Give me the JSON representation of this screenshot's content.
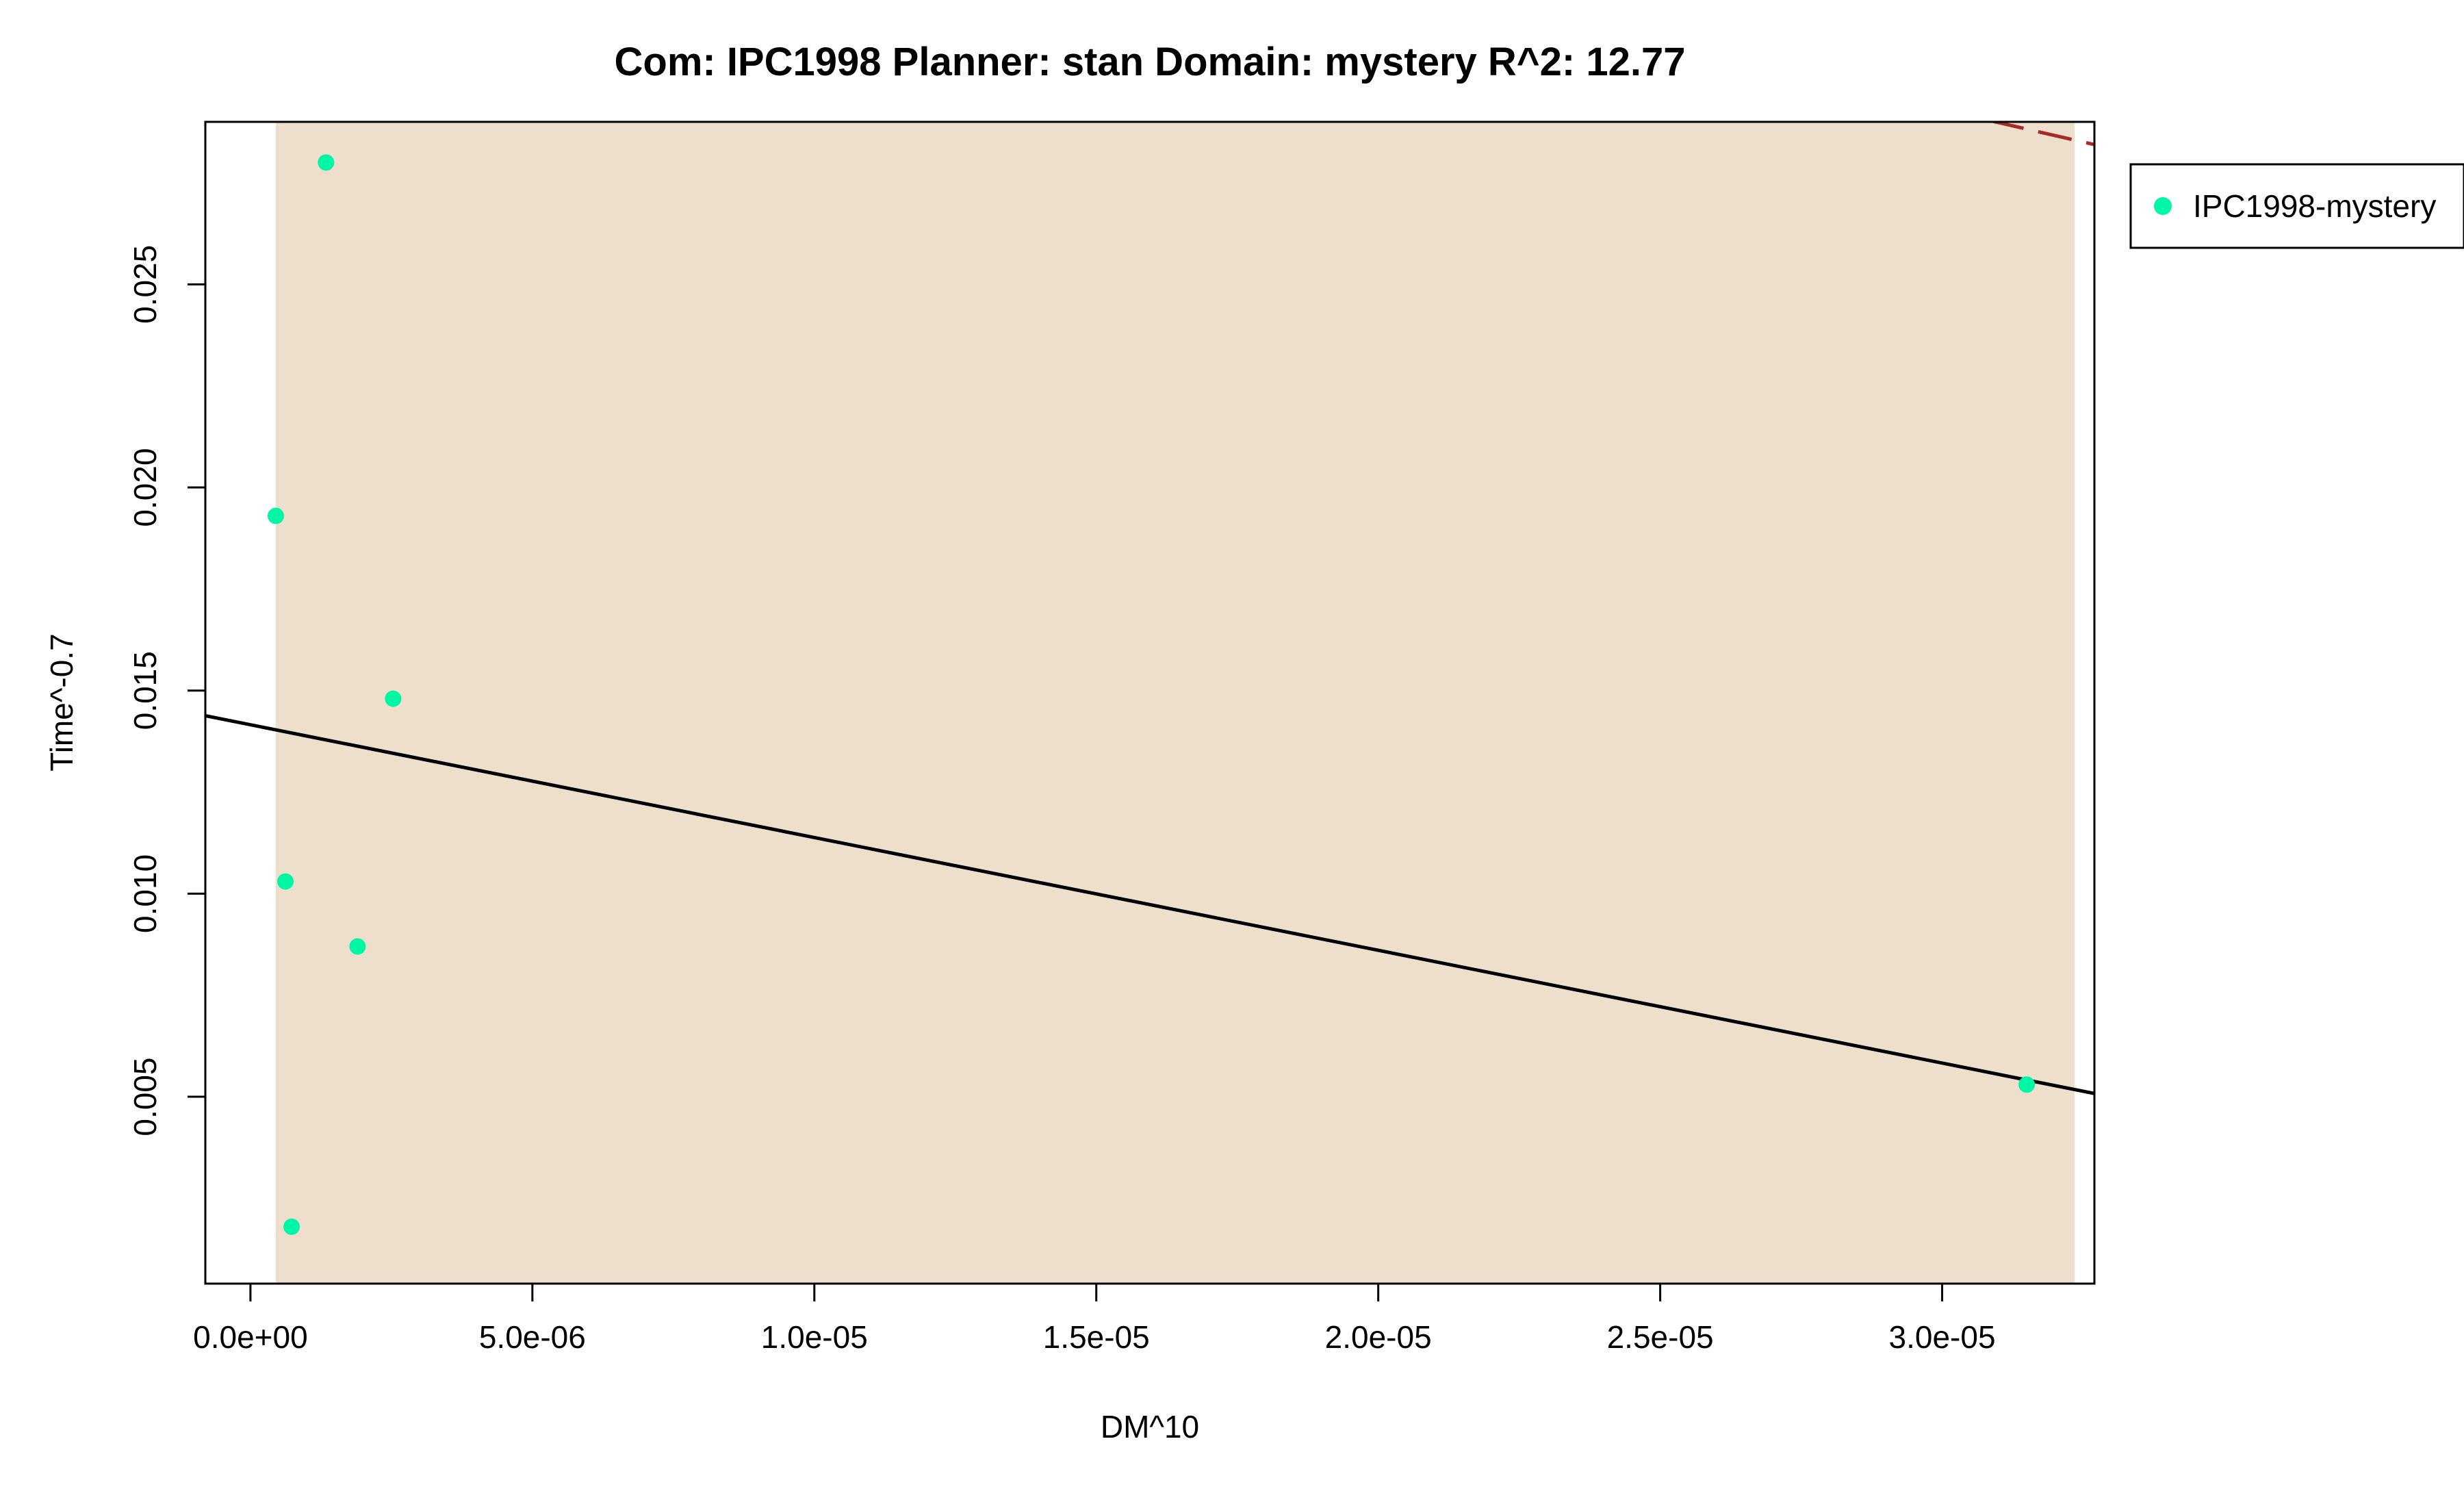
{
  "chart_data": {
    "type": "scatter",
    "title": "Com: IPC1998 Planner: stan Domain: mystery R^2: 12.77",
    "xlabel": "DM^10",
    "ylabel": "Time^-0.7",
    "xlim": [
      -8e-07,
      3.27e-05
    ],
    "ylim": [
      0.0004,
      0.029
    ],
    "x_ticks": [
      {
        "value": 0.0,
        "label": "0.0e+00"
      },
      {
        "value": 5e-06,
        "label": "5.0e-06"
      },
      {
        "value": 1e-05,
        "label": "1.0e-05"
      },
      {
        "value": 1.5e-05,
        "label": "1.5e-05"
      },
      {
        "value": 2e-05,
        "label": "2.0e-05"
      },
      {
        "value": 2.5e-05,
        "label": "2.5e-05"
      },
      {
        "value": 3e-05,
        "label": "3.0e-05"
      }
    ],
    "y_ticks": [
      {
        "value": 0.005,
        "label": "0.005"
      },
      {
        "value": 0.01,
        "label": "0.010"
      },
      {
        "value": 0.015,
        "label": "0.015"
      },
      {
        "value": 0.02,
        "label": "0.020"
      },
      {
        "value": 0.025,
        "label": "0.025"
      }
    ],
    "grid": false,
    "shaded_region": {
      "x_range": [
        4.5e-07,
        3.235e-05
      ],
      "color": "#EDDFCC"
    },
    "series": [
      {
        "name": "IPC1998-mystery",
        "color": "#00F5A5",
        "points": [
          {
            "x": 4.5e-07,
            "y": 0.0193
          },
          {
            "x": 6.2e-07,
            "y": 0.0103
          },
          {
            "x": 7.3e-07,
            "y": 0.0018
          },
          {
            "x": 1.34e-06,
            "y": 0.028
          },
          {
            "x": 1.9e-06,
            "y": 0.0087
          },
          {
            "x": 2.53e-06,
            "y": 0.0148
          },
          {
            "x": 3.15e-05,
            "y": 0.0053
          }
        ]
      }
    ],
    "fit_line": {
      "color": "#000000",
      "style": "solid",
      "points": [
        {
          "x": -8e-07,
          "y": 0.01438
        },
        {
          "x": 3.27e-05,
          "y": 0.00508
        }
      ]
    },
    "ref_line": {
      "color": "#A52A2A",
      "style": "dashed",
      "points": [
        {
          "x": 3e-05,
          "y": 0.0293
        },
        {
          "x": 3.27e-05,
          "y": 0.02844
        }
      ]
    },
    "legend": {
      "position": "outside-top-right",
      "entries": [
        "IPC1998-mystery"
      ]
    }
  }
}
